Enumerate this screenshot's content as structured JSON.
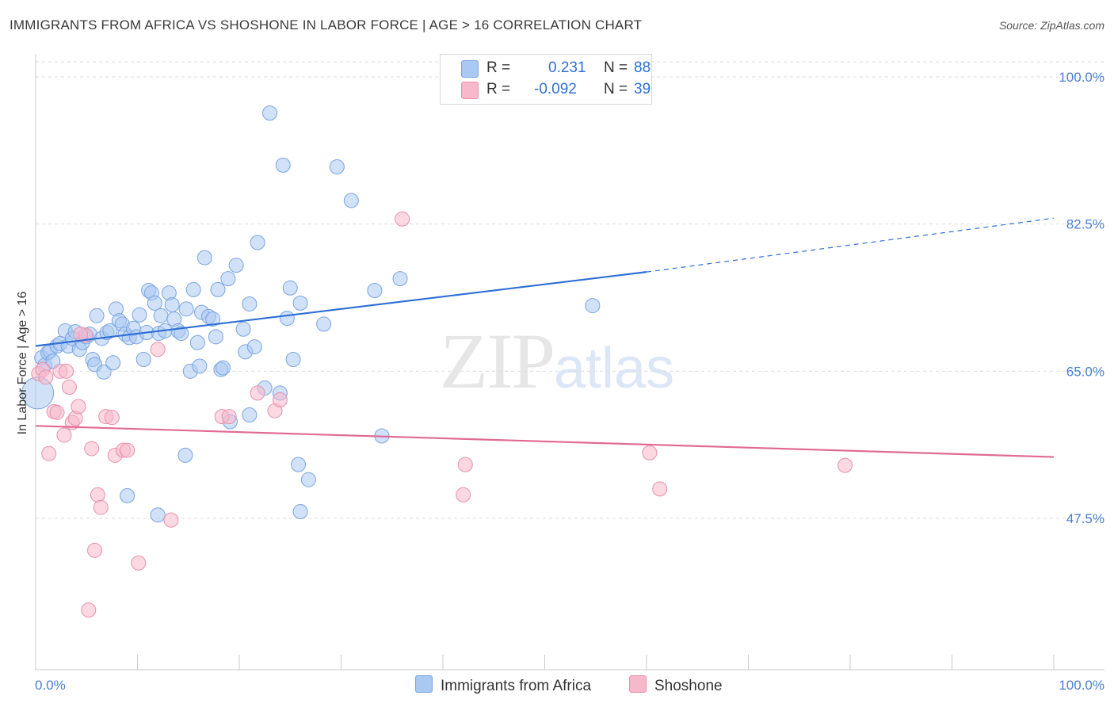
{
  "header": {
    "title": "IMMIGRANTS FROM AFRICA VS SHOSHONE IN LABOR FORCE | AGE > 16 CORRELATION CHART",
    "source": "Source: ZipAtlas.com"
  },
  "watermark": {
    "zip": "ZIP",
    "atlas": "atlas"
  },
  "legend": {
    "rows": [
      {
        "r_label": "R =",
        "r_value": "0.231",
        "n_label": "N =",
        "n_value": "88",
        "color": "#a9c8f2"
      },
      {
        "r_label": "R =",
        "r_value": "-0.092",
        "n_label": "N =",
        "n_value": "39",
        "color": "#f7b8cb"
      }
    ]
  },
  "colors": {
    "blue_fill": "#a9c8f2",
    "blue_stroke": "#7aa5e0",
    "blue_line": "#2e6fd6",
    "pink_fill": "#f7b8cb",
    "pink_stroke": "#e890ac",
    "pink_line": "#e06a94",
    "grid": "#dddddd",
    "axis_text": "#4a7fd0"
  },
  "chart_data": {
    "type": "scatter",
    "title": "IMMIGRANTS FROM AFRICA VS SHOSHONE IN LABOR FORCE | AGE > 16 CORRELATION CHART",
    "xlabel": "",
    "ylabel": "In Labor Force | Age > 16",
    "xlim": [
      0,
      100
    ],
    "ylim": [
      29.5,
      101.5
    ],
    "x_tick_labels": [
      "0.0%",
      "100.0%"
    ],
    "y_ticks": [
      47.5,
      65.0,
      82.5,
      100.0
    ],
    "y_tick_labels": [
      "47.5%",
      "65.0%",
      "82.5%",
      "100.0%"
    ],
    "grid": "horizontal dashed",
    "legend_position": "top-center",
    "series": [
      {
        "name": "Immigrants from Africa",
        "marker_color": "#a9c8f2",
        "trend": {
          "x0": 0,
          "y0": 68.0,
          "x1": 60,
          "y1": 76.8,
          "dashed_to_x": 100,
          "dashed_to_y": 83.2
        },
        "points": [
          [
            0.2,
            62.4
          ],
          [
            0.6,
            66.6
          ],
          [
            0.9,
            65.7
          ],
          [
            1.2,
            67.2
          ],
          [
            1.4,
            67.4
          ],
          [
            1.7,
            66.2
          ],
          [
            2.1,
            68.0
          ],
          [
            2.4,
            68.3
          ],
          [
            2.9,
            69.8
          ],
          [
            3.2,
            68.0
          ],
          [
            3.6,
            68.9
          ],
          [
            3.9,
            69.7
          ],
          [
            4.3,
            67.6
          ],
          [
            4.6,
            68.4
          ],
          [
            5.0,
            69.1
          ],
          [
            5.3,
            69.4
          ],
          [
            5.6,
            66.4
          ],
          [
            5.8,
            65.8
          ],
          [
            6.0,
            71.6
          ],
          [
            6.5,
            68.9
          ],
          [
            6.7,
            64.9
          ],
          [
            7.0,
            69.6
          ],
          [
            7.3,
            69.8
          ],
          [
            7.6,
            66.0
          ],
          [
            7.9,
            72.4
          ],
          [
            8.2,
            71.0
          ],
          [
            8.5,
            70.6
          ],
          [
            8.8,
            69.4
          ],
          [
            9.2,
            69.0
          ],
          [
            9.6,
            70.1
          ],
          [
            9.9,
            69.1
          ],
          [
            10.2,
            71.7
          ],
          [
            10.6,
            66.4
          ],
          [
            10.9,
            69.6
          ],
          [
            11.1,
            74.6
          ],
          [
            11.4,
            74.3
          ],
          [
            11.7,
            73.1
          ],
          [
            12.1,
            69.5
          ],
          [
            12.3,
            71.6
          ],
          [
            12.7,
            69.8
          ],
          [
            13.1,
            74.3
          ],
          [
            13.4,
            72.9
          ],
          [
            13.6,
            71.2
          ],
          [
            14.0,
            69.8
          ],
          [
            14.3,
            69.5
          ],
          [
            14.8,
            72.4
          ],
          [
            15.2,
            65.0
          ],
          [
            15.5,
            74.7
          ],
          [
            15.9,
            68.4
          ],
          [
            16.1,
            65.6
          ],
          [
            16.3,
            72.0
          ],
          [
            16.6,
            78.5
          ],
          [
            17.0,
            71.5
          ],
          [
            17.4,
            71.2
          ],
          [
            17.7,
            69.1
          ],
          [
            17.9,
            74.7
          ],
          [
            18.2,
            65.2
          ],
          [
            18.4,
            65.4
          ],
          [
            18.9,
            76.0
          ],
          [
            19.7,
            77.6
          ],
          [
            19.1,
            59.0
          ],
          [
            20.4,
            70.0
          ],
          [
            20.6,
            67.3
          ],
          [
            21.0,
            73.0
          ],
          [
            21.5,
            67.9
          ],
          [
            21.8,
            80.3
          ],
          [
            22.5,
            63.0
          ],
          [
            23.0,
            95.7
          ],
          [
            24.0,
            62.4
          ],
          [
            24.3,
            89.5
          ],
          [
            24.7,
            71.3
          ],
          [
            25.0,
            74.9
          ],
          [
            25.3,
            66.4
          ],
          [
            25.8,
            53.9
          ],
          [
            26.0,
            48.3
          ],
          [
            26.0,
            73.1
          ],
          [
            26.8,
            52.1
          ],
          [
            28.3,
            70.6
          ],
          [
            29.6,
            89.3
          ],
          [
            31.0,
            85.3
          ],
          [
            33.3,
            74.6
          ],
          [
            34.0,
            57.3
          ],
          [
            35.8,
            76.0
          ],
          [
            54.7,
            72.8
          ],
          [
            9.0,
            50.2
          ],
          [
            12.0,
            47.9
          ],
          [
            14.7,
            55.0
          ],
          [
            21.0,
            59.8
          ]
        ]
      },
      {
        "name": "Shoshone",
        "marker_color": "#f7b8cb",
        "trend": {
          "x0": 0,
          "y0": 58.5,
          "x1": 100,
          "y1": 54.8
        },
        "points": [
          [
            0.3,
            64.7
          ],
          [
            0.7,
            65.2
          ],
          [
            1.0,
            64.3
          ],
          [
            1.3,
            55.2
          ],
          [
            1.8,
            60.2
          ],
          [
            2.1,
            60.1
          ],
          [
            2.4,
            65.0
          ],
          [
            2.8,
            57.4
          ],
          [
            3.0,
            65.0
          ],
          [
            3.3,
            63.1
          ],
          [
            3.6,
            58.9
          ],
          [
            3.9,
            59.4
          ],
          [
            4.2,
            60.8
          ],
          [
            4.9,
            69.3
          ],
          [
            5.5,
            55.8
          ],
          [
            5.8,
            43.7
          ],
          [
            6.1,
            50.3
          ],
          [
            6.4,
            48.8
          ],
          [
            6.9,
            59.6
          ],
          [
            7.5,
            59.5
          ],
          [
            7.8,
            55.0
          ],
          [
            8.6,
            55.6
          ],
          [
            9.0,
            55.6
          ],
          [
            10.1,
            42.2
          ],
          [
            12.0,
            67.6
          ],
          [
            13.3,
            47.3
          ],
          [
            18.3,
            59.6
          ],
          [
            19.0,
            59.6
          ],
          [
            21.8,
            62.4
          ],
          [
            23.5,
            60.3
          ],
          [
            24.0,
            61.6
          ],
          [
            36.0,
            83.1
          ],
          [
            42.0,
            50.3
          ],
          [
            42.2,
            53.9
          ],
          [
            60.3,
            55.3
          ],
          [
            61.3,
            51.0
          ],
          [
            79.5,
            53.8
          ],
          [
            5.2,
            36.6
          ],
          [
            4.4,
            69.4
          ]
        ]
      }
    ]
  },
  "bottom_legend": [
    {
      "label": "Immigrants from Africa",
      "color": "#a9c8f2"
    },
    {
      "label": "Shoshone",
      "color": "#f7b8cb"
    }
  ]
}
